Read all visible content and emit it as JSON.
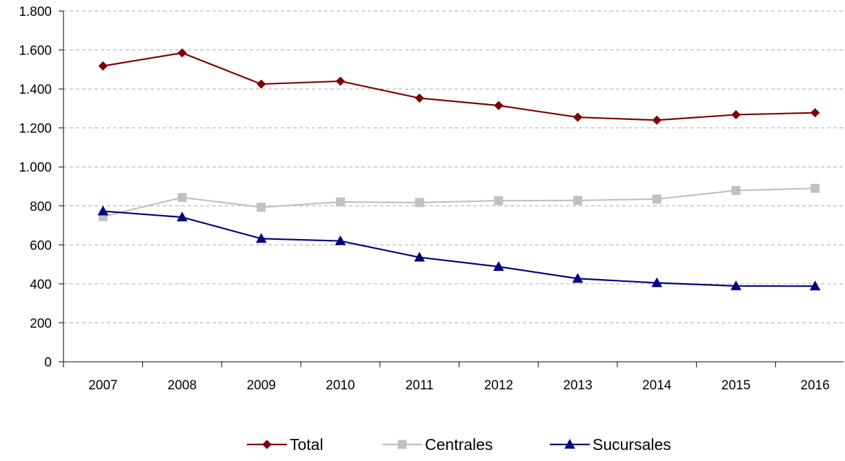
{
  "chart_data": {
    "type": "line",
    "title": "",
    "xlabel": "",
    "ylabel": "",
    "categories": [
      "2007",
      "2008",
      "2009",
      "2010",
      "2011",
      "2012",
      "2013",
      "2014",
      "2015",
      "2016"
    ],
    "ylim": [
      0,
      1800
    ],
    "y_ticks": [
      0,
      200,
      400,
      600,
      800,
      1000,
      1200,
      1400,
      1600,
      1800
    ],
    "y_tick_labels": [
      "0",
      "200",
      "400",
      "600",
      "800",
      "1.000",
      "1.200",
      "1.400",
      "1.600",
      "1.800"
    ],
    "grid": "horizontal dashed",
    "legend_position": "bottom",
    "series": [
      {
        "name": "Total",
        "color": "#7f0000",
        "marker": "diamond",
        "values": [
          1518,
          1585,
          1425,
          1440,
          1353,
          1315,
          1255,
          1240,
          1268,
          1278
        ]
      },
      {
        "name": "Centrales",
        "color": "#c0c0c0",
        "marker": "square",
        "values": [
          745,
          843,
          793,
          820,
          817,
          827,
          828,
          835,
          879,
          890
        ]
      },
      {
        "name": "Sucursales",
        "color": "#000080",
        "marker": "triangle",
        "values": [
          773,
          742,
          632,
          620,
          536,
          488,
          427,
          405,
          389,
          388
        ]
      }
    ]
  }
}
